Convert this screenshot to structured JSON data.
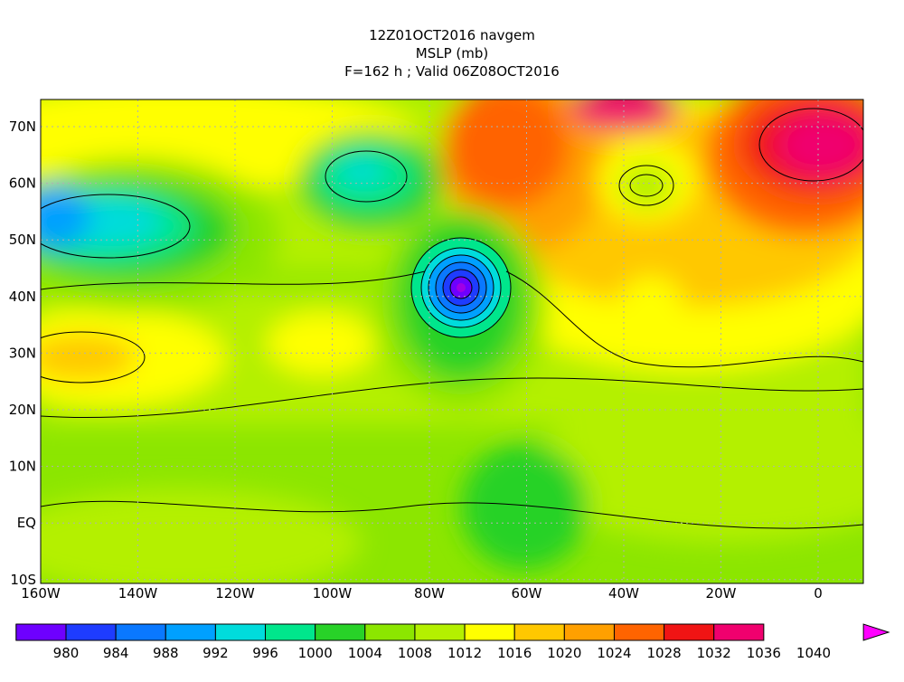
{
  "header": {
    "lines": [
      "12Z01OCT2016 navgem",
      "MSLP (mb)",
      "F=162 h ; Valid 06Z08OCT2016"
    ]
  },
  "map": {
    "lon_labels": [
      "160W",
      "140W",
      "120W",
      "100W",
      "80W",
      "60W",
      "40W",
      "20W",
      "0"
    ],
    "lat_labels": [
      "70N",
      "60N",
      "50N",
      "40N",
      "30N",
      "20N",
      "10N",
      "EQ",
      "10S"
    ]
  },
  "colorbar": {
    "levels": [
      980,
      984,
      988,
      992,
      996,
      1000,
      1004,
      1008,
      1012,
      1016,
      1020,
      1024,
      1028,
      1032,
      1036,
      1040
    ],
    "colors": [
      "#a000e6",
      "#6e00ff",
      "#1e3cff",
      "#0a78ff",
      "#00a0ff",
      "#00dcdc",
      "#00e68c",
      "#28d228",
      "#8ce600",
      "#b4f000",
      "#ffff00",
      "#ffc800",
      "#ffa000",
      "#ff6400",
      "#f01414",
      "#f0006e",
      "#ff00ff"
    ]
  }
}
